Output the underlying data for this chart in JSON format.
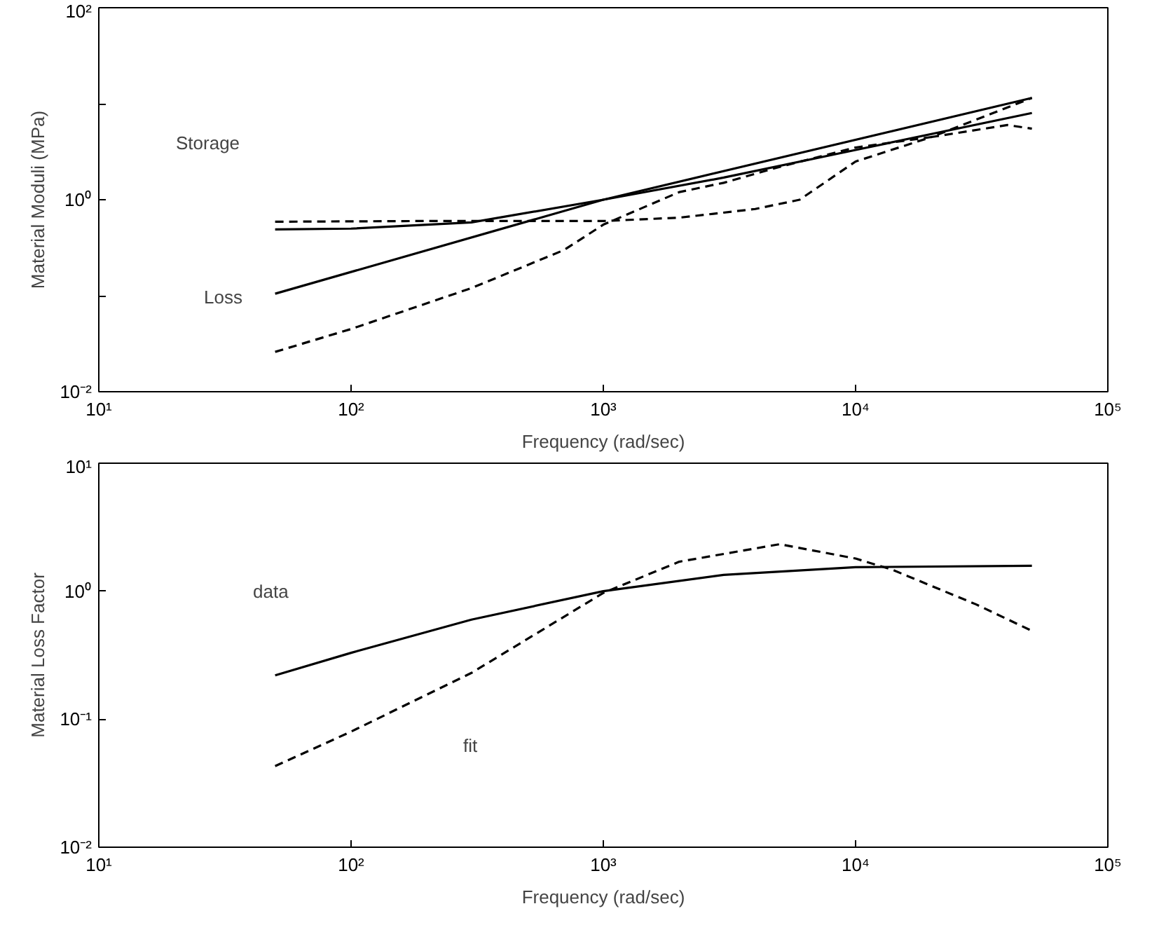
{
  "chart_data": [
    {
      "type": "line",
      "xlabel": "Frequency (rad/sec)",
      "ylabel": "Material Moduli (MPa)",
      "log": "xy",
      "grid": false,
      "xlim": [
        10,
        100000
      ],
      "xticks": [
        {
          "value": 10,
          "label": "10¹"
        },
        {
          "value": 100,
          "label": "10²"
        },
        {
          "value": 1000,
          "label": "10³"
        },
        {
          "value": 10000,
          "label": "10⁴"
        },
        {
          "value": 100000,
          "label": "10⁵"
        }
      ],
      "ylim": [
        0.01,
        100
      ],
      "yticks": [
        {
          "value": 0.01,
          "label": "10⁻²"
        },
        {
          "value": 0.1,
          "label": null
        },
        {
          "value": 1,
          "label": "10⁰"
        },
        {
          "value": 10,
          "label": null
        },
        {
          "value": 100,
          "label": "10²"
        }
      ],
      "series": [
        {
          "color": "#000000",
          "line_style": "solid",
          "x": [
            50,
            100,
            300,
            1000,
            3000,
            10000,
            50000
          ],
          "values": [
            0.49,
            0.5,
            0.58,
            1.0,
            1.7,
            3.3,
            8
          ]
        },
        {
          "color": "#000000",
          "line_style": "dashed",
          "x": [
            50,
            200,
            500,
            1000,
            2000,
            4000,
            6000,
            10000,
            20000,
            40000,
            50000
          ],
          "values": [
            0.59,
            0.6,
            0.6,
            0.6,
            0.65,
            0.8,
            1.0,
            2.5,
            4.5,
            6,
            5.5
          ]
        },
        {
          "color": "#000000",
          "line_style": "solid",
          "x": [
            50,
            1000,
            50000
          ],
          "values": [
            0.105,
            1.0,
            11.5
          ]
        },
        {
          "color": "#000000",
          "line_style": "dashed",
          "x": [
            50,
            100,
            300,
            700,
            1000,
            2000,
            3000,
            5000,
            10000,
            20000,
            50000
          ],
          "values": [
            0.026,
            0.045,
            0.12,
            0.3,
            0.55,
            1.2,
            1.5,
            2.2,
            3.5,
            4.5,
            11.5
          ]
        }
      ],
      "annotations": [
        "Storage",
        "Loss"
      ]
    },
    {
      "type": "line",
      "xlabel": "Frequency (rad/sec)",
      "ylabel": "Material Loss Factor",
      "log": "xy",
      "grid": false,
      "xlim": [
        10,
        100000
      ],
      "xticks": [
        {
          "value": 10,
          "label": "10¹"
        },
        {
          "value": 100,
          "label": "10²"
        },
        {
          "value": 1000,
          "label": "10³"
        },
        {
          "value": 10000,
          "label": "10⁴"
        },
        {
          "value": 100000,
          "label": "10⁵"
        }
      ],
      "ylim": [
        0.01,
        10
      ],
      "yticks": [
        {
          "value": 0.01,
          "label": "10⁻²"
        },
        {
          "value": 0.1,
          "label": "10⁻¹"
        },
        {
          "value": 1,
          "label": "10⁰"
        },
        {
          "value": 10,
          "label": "10¹"
        }
      ],
      "series": [
        {
          "color": "#000000",
          "line_style": "solid",
          "x": [
            50,
            100,
            300,
            1000,
            3000,
            10000,
            50000
          ],
          "values": [
            0.22,
            0.33,
            0.6,
            1.0,
            1.34,
            1.54,
            1.58
          ]
        },
        {
          "color": "#000000",
          "line_style": "dashed",
          "x": [
            50,
            100,
            300,
            1000,
            2000,
            5000,
            10000,
            14000,
            30000,
            50000
          ],
          "values": [
            0.043,
            0.08,
            0.23,
            0.97,
            1.7,
            2.33,
            1.8,
            1.47,
            0.79,
            0.49
          ]
        }
      ],
      "annotations": [
        "data",
        "fit"
      ]
    }
  ]
}
